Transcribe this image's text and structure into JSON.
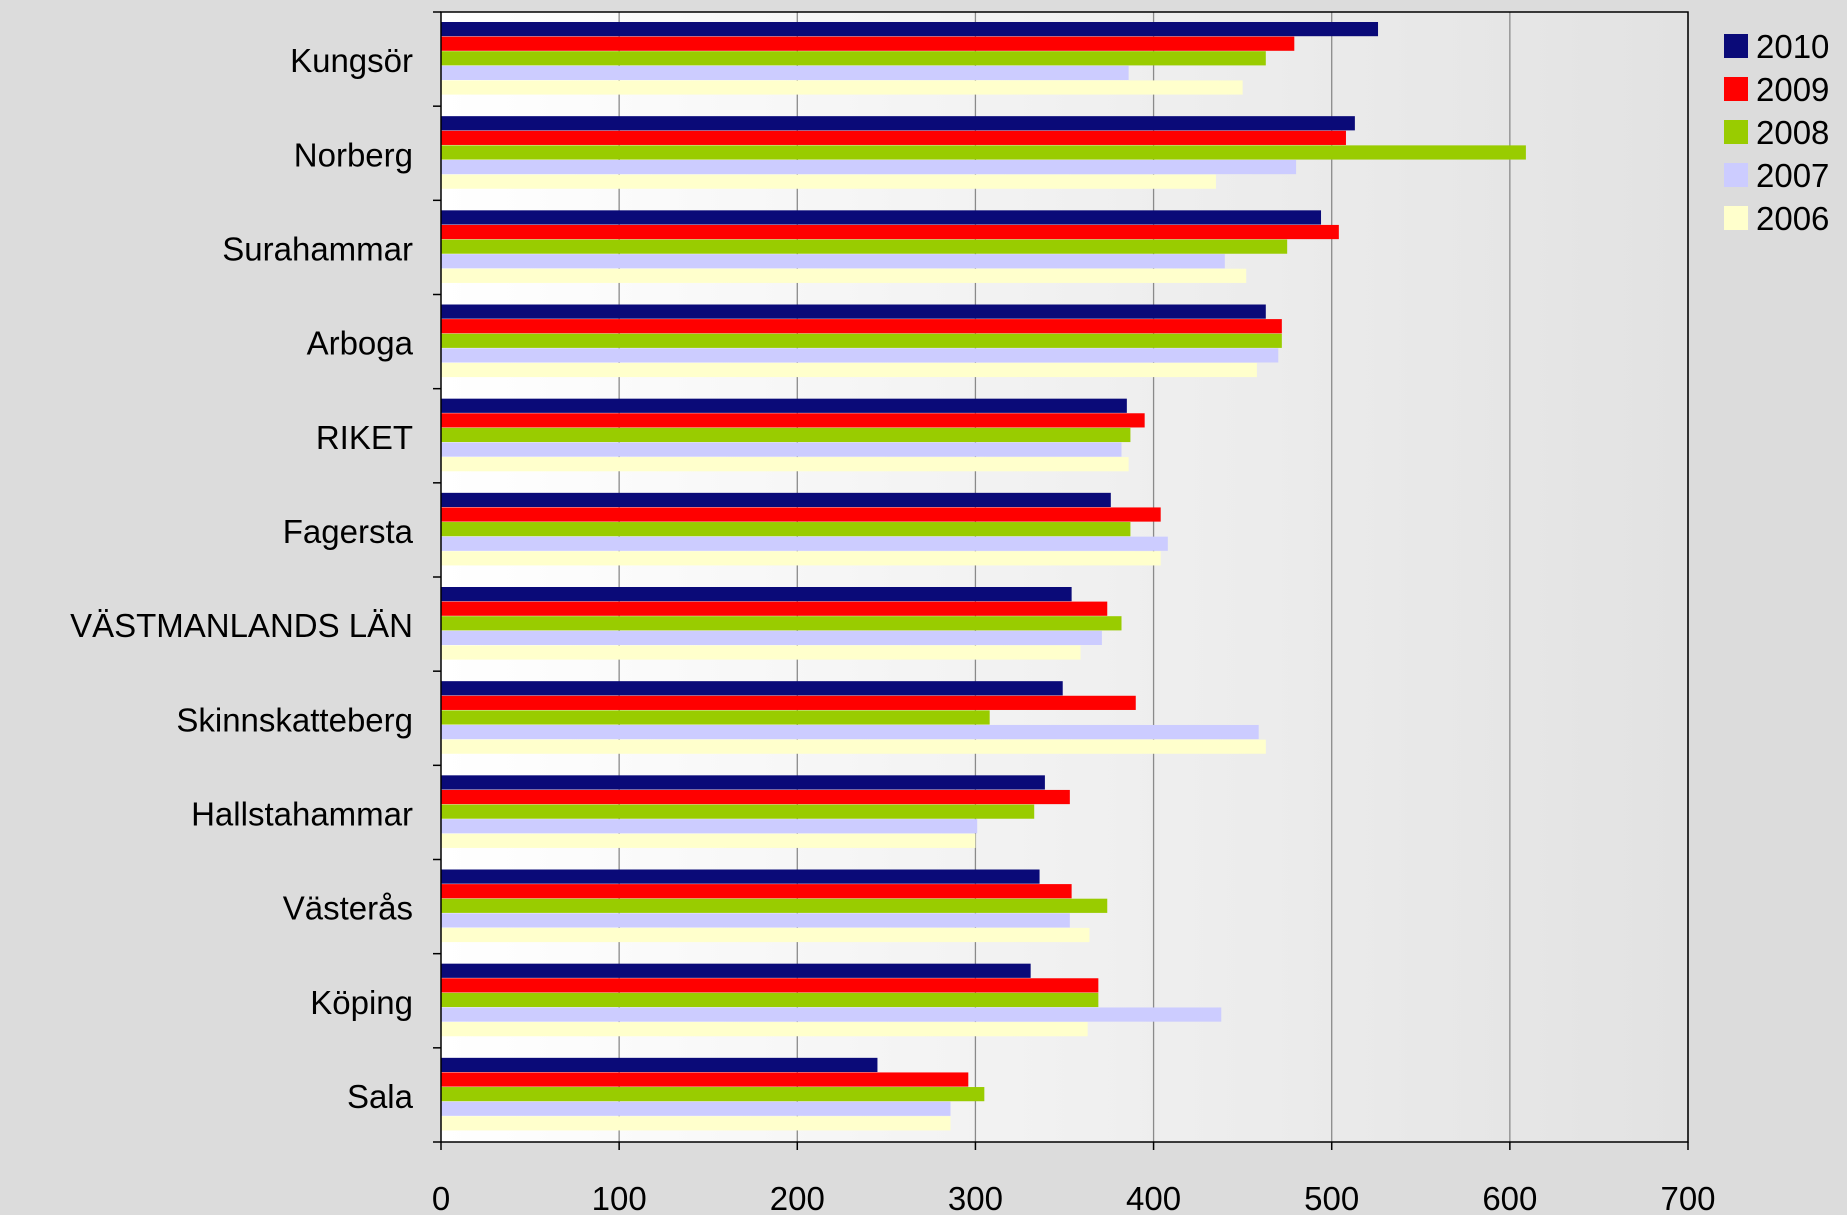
{
  "chart_data": {
    "type": "bar",
    "orientation": "horizontal",
    "categories": [
      "Kungsör",
      "Norberg",
      "Surahammar",
      "Arboga",
      "RIKET",
      "Fagersta",
      "VÄSTMANLANDS LÄN",
      "Skinnskatteberg",
      "Hallstahammar",
      "Västerås",
      "Köping",
      "Sala"
    ],
    "series": [
      {
        "name": "2010",
        "color": "#0a0a78",
        "values": [
          526,
          513,
          494,
          463,
          385,
          376,
          354,
          349,
          339,
          336,
          331,
          245
        ]
      },
      {
        "name": "2009",
        "color": "#ff0000",
        "values": [
          479,
          508,
          504,
          472,
          395,
          404,
          374,
          390,
          353,
          354,
          369,
          296
        ]
      },
      {
        "name": "2008",
        "color": "#99cc00",
        "values": [
          463,
          609,
          475,
          472,
          387,
          387,
          382,
          308,
          333,
          374,
          369,
          305
        ]
      },
      {
        "name": "2007",
        "color": "#ccccff",
        "values": [
          386,
          480,
          440,
          470,
          382,
          408,
          371,
          459,
          301,
          353,
          438,
          286
        ]
      },
      {
        "name": "2006",
        "color": "#ffffcc",
        "values": [
          450,
          435,
          452,
          458,
          386,
          404,
          359,
          463,
          300,
          364,
          363,
          286
        ]
      }
    ],
    "xlim": [
      0,
      700
    ],
    "xticks": [
      "0",
      "100",
      "200",
      "300",
      "400",
      "500",
      "600",
      "700"
    ],
    "grid": "vertical",
    "legend_position": "right",
    "title": "",
    "xlabel": "",
    "ylabel": ""
  }
}
